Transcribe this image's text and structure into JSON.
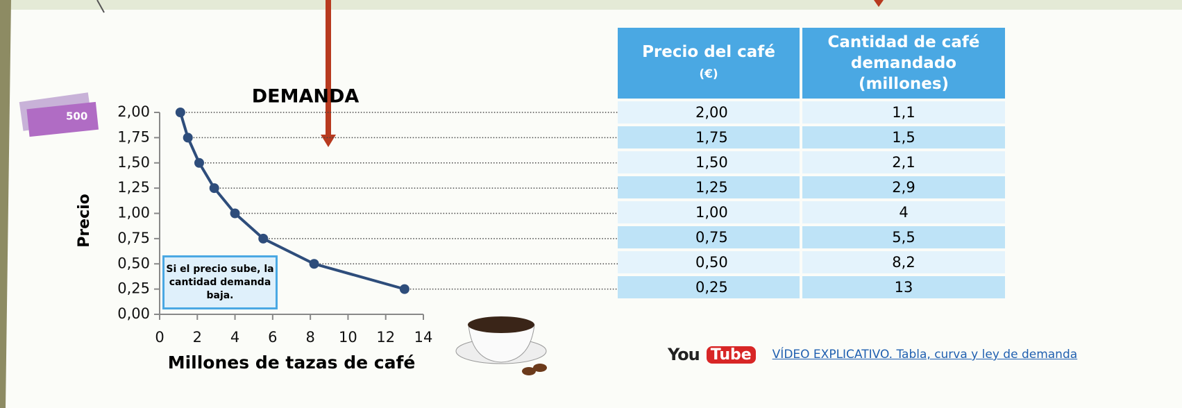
{
  "chart_data": {
    "type": "line",
    "title": "DEMANDA",
    "x_label": "Millones de tazas de café",
    "y_label": "Precio",
    "x": [
      1.1,
      1.5,
      2.1,
      2.9,
      4,
      5.5,
      8.2,
      13
    ],
    "series": [
      {
        "color": "#2e4d7b",
        "values": [
          2,
          1.75,
          1.5,
          1.25,
          1,
          0.75,
          0.5,
          0.25
        ]
      }
    ],
    "xlim": [
      0,
      14
    ],
    "xticks": [
      0,
      2,
      4,
      6,
      8,
      10,
      12,
      14
    ],
    "ylim": [
      0,
      2
    ],
    "yticks": [
      {
        "value": 0,
        "label": "0,00"
      },
      {
        "value": 0.25,
        "label": "0,25"
      },
      {
        "value": 0.5,
        "label": "0,50"
      },
      {
        "value": 0.75,
        "label": "0,75"
      },
      {
        "value": 1,
        "label": "1,00"
      },
      {
        "value": 1.25,
        "label": "1,25"
      },
      {
        "value": 1.5,
        "label": "1,50"
      },
      {
        "value": 1.75,
        "label": "1,75"
      },
      {
        "value": 2,
        "label": "2,00"
      }
    ],
    "annotation": "Si el precio sube, la cantidad demanda baja."
  },
  "table": {
    "header": [
      {
        "main": "Precio del café",
        "unit": "(€)"
      },
      {
        "main": "Cantidad de café demandado (millones)"
      }
    ],
    "rows": [
      [
        "2,00",
        "1,1"
      ],
      [
        "1,75",
        "1,5"
      ],
      [
        "1,50",
        "2,1"
      ],
      [
        "1,25",
        "2,9"
      ],
      [
        "1,00",
        "4"
      ],
      [
        "0,75",
        "5,5"
      ],
      [
        "0,50",
        "8,2"
      ],
      [
        "0,25",
        "13"
      ]
    ]
  },
  "footer": {
    "logo_you": "You",
    "logo_tube": "Tube",
    "link": "VÍDEO EXPLICATIVO. Tabla, curva y ley de demanda"
  }
}
